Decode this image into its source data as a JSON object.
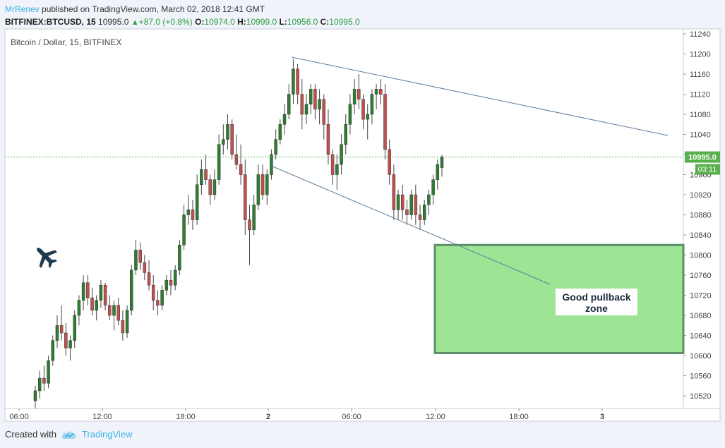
{
  "header": {
    "author": "MrRenev",
    "published": "published on TradingView.com, March 02, 2018 12:41 GMT",
    "symbol": "BITFINEX:BTCUSD, 15",
    "last": "10995.0",
    "change": "+87.0 (+0.8%)",
    "o_label": "O:",
    "o_value": "10974.0",
    "h_label": "H:",
    "h_value": "10999.0",
    "l_label": "L:",
    "l_value": "10956.0",
    "c_label": "C:",
    "c_value": "10995.0"
  },
  "footer": {
    "created_with": "Created with",
    "brand": "TradingView"
  },
  "colors": {
    "up": "#2e7d32",
    "down": "#c0504d",
    "trendline": "#5a7a9e",
    "zone_fill": "#9de495",
    "zone_border": "#5c8f68",
    "price_tag": "#5ab04e",
    "airplane": "#1f3b4d"
  },
  "chart_data": {
    "type": "candlestick",
    "title": "Bitcoin / Dollar, 15, BITFINEX",
    "ylim": [
      10490,
      11250
    ],
    "y_ticks": [
      11240,
      11200,
      11160,
      11120,
      11080,
      11040,
      11000,
      10960,
      10920,
      10880,
      10840,
      10800,
      10760,
      10720,
      10680,
      10640,
      10600,
      10560,
      10520
    ],
    "x_ticks": [
      "06:00",
      "12:00",
      "18:00",
      "2",
      "06:00",
      "12:00",
      "18:00",
      "3"
    ],
    "last_price": "10995.0",
    "countdown": "03:11",
    "candles": [
      [
        10510,
        10540,
        10495,
        10530
      ],
      [
        10530,
        10570,
        10515,
        10555
      ],
      [
        10555,
        10580,
        10530,
        10545
      ],
      [
        10545,
        10600,
        10535,
        10590
      ],
      [
        10590,
        10640,
        10580,
        10630
      ],
      [
        10630,
        10680,
        10615,
        10660
      ],
      [
        10660,
        10700,
        10630,
        10645
      ],
      [
        10645,
        10665,
        10600,
        10615
      ],
      [
        10615,
        10640,
        10590,
        10630
      ],
      [
        10630,
        10690,
        10615,
        10680
      ],
      [
        10680,
        10720,
        10660,
        10710
      ],
      [
        10710,
        10760,
        10690,
        10745
      ],
      [
        10745,
        10760,
        10700,
        10715
      ],
      [
        10715,
        10735,
        10680,
        10690
      ],
      [
        10690,
        10720,
        10670,
        10710
      ],
      [
        10710,
        10750,
        10695,
        10740
      ],
      [
        10740,
        10745,
        10690,
        10700
      ],
      [
        10700,
        10720,
        10670,
        10680
      ],
      [
        10680,
        10710,
        10650,
        10700
      ],
      [
        10700,
        10715,
        10660,
        10670
      ],
      [
        10670,
        10690,
        10630,
        10645
      ],
      [
        10645,
        10700,
        10635,
        10690
      ],
      [
        10690,
        10780,
        10680,
        10770
      ],
      [
        10770,
        10830,
        10760,
        10810
      ],
      [
        10810,
        10825,
        10770,
        10785
      ],
      [
        10785,
        10800,
        10750,
        10765
      ],
      [
        10765,
        10790,
        10730,
        10740
      ],
      [
        10740,
        10760,
        10690,
        10710
      ],
      [
        10710,
        10730,
        10680,
        10700
      ],
      [
        10700,
        10740,
        10690,
        10730
      ],
      [
        10730,
        10760,
        10720,
        10750
      ],
      [
        10750,
        10770,
        10720,
        10740
      ],
      [
        10740,
        10780,
        10730,
        10770
      ],
      [
        10770,
        10830,
        10760,
        10820
      ],
      [
        10820,
        10900,
        10810,
        10880
      ],
      [
        10880,
        10920,
        10860,
        10890
      ],
      [
        10890,
        10910,
        10850,
        10870
      ],
      [
        10870,
        10960,
        10860,
        10940
      ],
      [
        10940,
        10990,
        10920,
        10970
      ],
      [
        10970,
        11000,
        10940,
        10950
      ],
      [
        10950,
        10960,
        10900,
        10920
      ],
      [
        10920,
        10970,
        10910,
        10950
      ],
      [
        10950,
        11040,
        10940,
        11020
      ],
      [
        11020,
        11060,
        11000,
        11030
      ],
      [
        11030,
        11080,
        11010,
        11060
      ],
      [
        11060,
        11070,
        10990,
        11000
      ],
      [
        11000,
        11040,
        10970,
        10980
      ],
      [
        10980,
        11020,
        10940,
        10960
      ],
      [
        10960,
        10990,
        10840,
        10870
      ],
      [
        10870,
        10900,
        10780,
        10850
      ],
      [
        10850,
        10920,
        10840,
        10900
      ],
      [
        10900,
        10980,
        10890,
        10960
      ],
      [
        10960,
        10980,
        10910,
        10920
      ],
      [
        10920,
        10970,
        10900,
        10960
      ],
      [
        10960,
        11010,
        10950,
        11000
      ],
      [
        11000,
        11050,
        10990,
        11030
      ],
      [
        11030,
        11070,
        11020,
        11060
      ],
      [
        11060,
        11100,
        11040,
        11080
      ],
      [
        11080,
        11140,
        11070,
        11120
      ],
      [
        11120,
        11190,
        11100,
        11170
      ],
      [
        11170,
        11180,
        11100,
        11120
      ],
      [
        11120,
        11150,
        11050,
        11080
      ],
      [
        11080,
        11120,
        11060,
        11100
      ],
      [
        11100,
        11140,
        11080,
        11130
      ],
      [
        11130,
        11140,
        11070,
        11090
      ],
      [
        11090,
        11130,
        11060,
        11110
      ],
      [
        11110,
        11120,
        11030,
        11060
      ],
      [
        11060,
        11090,
        10980,
        11000
      ],
      [
        11000,
        11010,
        10940,
        10960
      ],
      [
        10960,
        11000,
        10930,
        10980
      ],
      [
        10980,
        11040,
        10960,
        11020
      ],
      [
        11020,
        11080,
        11000,
        11060
      ],
      [
        11060,
        11120,
        11040,
        11100
      ],
      [
        11100,
        11150,
        11080,
        11130
      ],
      [
        11130,
        11160,
        11090,
        11110
      ],
      [
        11110,
        11120,
        11050,
        11070
      ],
      [
        11070,
        11100,
        11030,
        11080
      ],
      [
        11080,
        11130,
        11060,
        11120
      ],
      [
        11120,
        11140,
        11090,
        11130
      ],
      [
        11130,
        11150,
        11100,
        11120
      ],
      [
        11120,
        11140,
        10990,
        11010
      ],
      [
        11010,
        11030,
        10940,
        10960
      ],
      [
        10960,
        10980,
        10870,
        10890
      ],
      [
        10890,
        10930,
        10870,
        10920
      ],
      [
        10920,
        10940,
        10870,
        10890
      ],
      [
        10890,
        10910,
        10860,
        10880
      ],
      [
        10880,
        10930,
        10870,
        10920
      ],
      [
        10920,
        10940,
        10860,
        10880
      ],
      [
        10880,
        10900,
        10850,
        10870
      ],
      [
        10870,
        10910,
        10860,
        10900
      ],
      [
        10900,
        10930,
        10880,
        10920
      ],
      [
        10920,
        10960,
        10900,
        10950
      ],
      [
        10950,
        10990,
        10930,
        10980
      ],
      [
        10974,
        10999,
        10956,
        10995
      ]
    ],
    "annotations": {
      "zone_label": "Good pullback zone",
      "zone_range": [
        10605,
        10820
      ]
    }
  }
}
